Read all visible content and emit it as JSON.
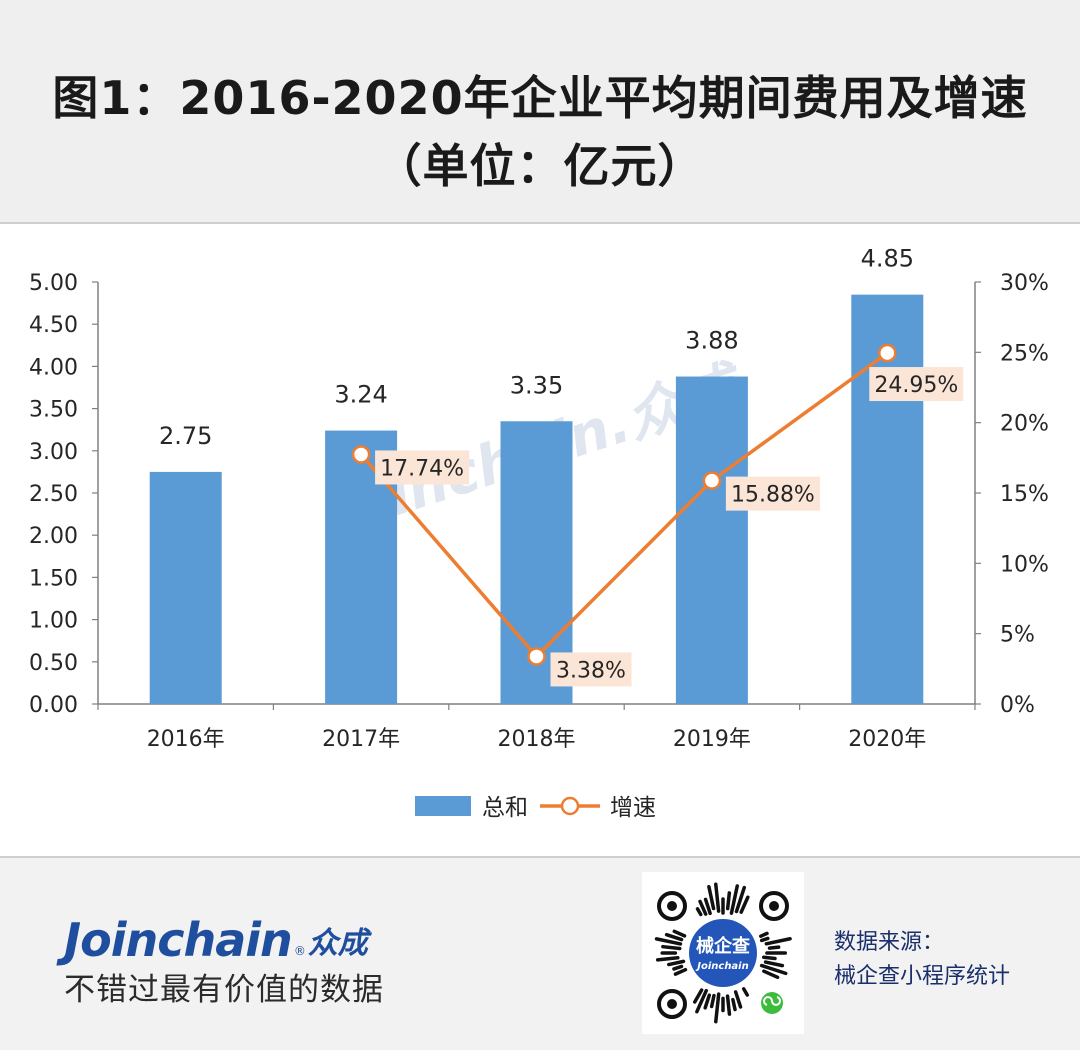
{
  "header": {
    "title_line1": "图1：2016-2020年企业平均期间费用及增速",
    "title_line2": "（单位：亿元）"
  },
  "watermark": "Joinchain.众成",
  "chart_data": {
    "type": "bar",
    "categories": [
      "2016年",
      "2017年",
      "2018年",
      "2019年",
      "2020年"
    ],
    "series": [
      {
        "name": "总和",
        "type": "bar",
        "axis": "left",
        "color": "#5b9bd5",
        "values": [
          2.75,
          3.24,
          3.35,
          3.88,
          4.85
        ],
        "labels": [
          "2.75",
          "3.24",
          "3.35",
          "3.88",
          "4.85"
        ]
      },
      {
        "name": "增速",
        "type": "line",
        "axis": "right",
        "color": "#ed7d31",
        "values": [
          null,
          17.74,
          3.38,
          15.88,
          24.95
        ],
        "labels": [
          null,
          "17.74%",
          "3.38%",
          "15.88%",
          "24.95%"
        ]
      }
    ],
    "left_axis": {
      "ylim": [
        0,
        5
      ],
      "ticks": [
        "0.00",
        "0.50",
        "1.00",
        "1.50",
        "2.00",
        "2.50",
        "3.00",
        "3.50",
        "4.00",
        "4.50",
        "5.00"
      ]
    },
    "right_axis": {
      "ylim": [
        0,
        30
      ],
      "ticks": [
        "0%",
        "5%",
        "10%",
        "15%",
        "20%",
        "25%",
        "30%"
      ]
    },
    "legend": {
      "placement": "bottom-center",
      "items": [
        "总和",
        "增速"
      ]
    },
    "grid": false
  },
  "footer": {
    "brand_word": "Joinchain",
    "brand_reg": "®",
    "brand_cn": "众成",
    "slogan": "不错过最有价值的数据",
    "qr_label_cn": "械企查",
    "qr_label_en": "Joinchain",
    "source_line1": "数据来源：",
    "source_line2": "械企查小程序统计"
  }
}
